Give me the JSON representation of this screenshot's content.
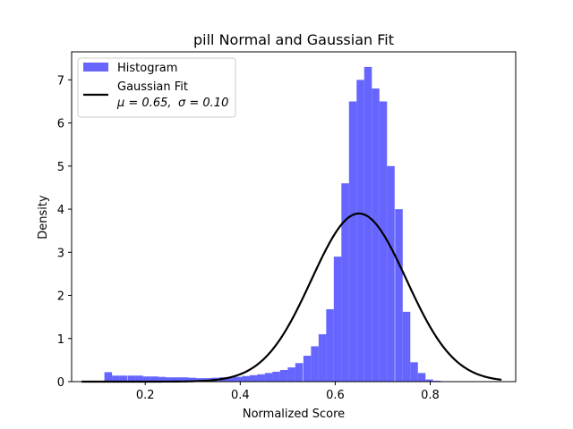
{
  "chart_data": {
    "type": "bar",
    "title": "pill Normal and Gaussian Fit",
    "xlabel": "Normalized Score",
    "ylabel": "Density",
    "xlim": [
      0.045,
      0.98
    ],
    "ylim": [
      0,
      7.65
    ],
    "xticks": [
      0.2,
      0.4,
      0.6,
      0.8
    ],
    "xtick_labels": [
      "0.2",
      "0.4",
      "0.6",
      "0.8"
    ],
    "yticks": [
      0,
      1,
      2,
      3,
      4,
      5,
      6,
      7
    ],
    "ytick_labels": [
      "0",
      "1",
      "2",
      "3",
      "4",
      "5",
      "6",
      "7"
    ],
    "histogram": {
      "name": "Histogram",
      "color": "#6666ff",
      "bin_width": 0.0161,
      "bins_start": [
        0.066,
        0.082,
        0.098,
        0.114,
        0.13,
        0.146,
        0.163,
        0.179,
        0.195,
        0.211,
        0.227,
        0.243,
        0.259,
        0.275,
        0.291,
        0.307,
        0.323,
        0.339,
        0.356,
        0.372,
        0.388,
        0.404,
        0.42,
        0.436,
        0.452,
        0.468,
        0.484,
        0.5,
        0.516,
        0.533,
        0.549,
        0.565,
        0.581,
        0.597,
        0.613,
        0.629,
        0.645,
        0.661,
        0.677,
        0.693,
        0.709,
        0.726,
        0.742,
        0.758,
        0.774,
        0.79,
        0.806,
        0.822,
        0.838,
        0.854,
        0.87,
        0.886,
        0.902,
        0.918,
        0.934
      ],
      "values": [
        0.01,
        0.01,
        0.01,
        0.22,
        0.14,
        0.14,
        0.14,
        0.14,
        0.12,
        0.12,
        0.11,
        0.1,
        0.1,
        0.1,
        0.09,
        0.08,
        0.08,
        0.09,
        0.1,
        0.1,
        0.11,
        0.13,
        0.15,
        0.17,
        0.2,
        0.23,
        0.27,
        0.33,
        0.43,
        0.6,
        0.82,
        1.1,
        1.68,
        2.9,
        4.6,
        6.5,
        7.0,
        7.3,
        6.8,
        6.5,
        5.0,
        4.0,
        1.62,
        0.45,
        0.2,
        0.05,
        0.02,
        0.01,
        0.0,
        0.0,
        0.0,
        0.0,
        0.0,
        0.0,
        0.0
      ]
    },
    "gaussian_fit": {
      "name": "Gaussian Fit",
      "mu": 0.65,
      "sigma": 0.1,
      "peak_density": 3.9,
      "x_range": [
        0.066,
        0.95
      ],
      "color": "#000000"
    },
    "legend": {
      "position": "top-left",
      "histogram_label": "Histogram",
      "fit_label_line1": "Gaussian Fit",
      "fit_label_mu": "μ = 0.65,",
      "fit_label_sigma": "σ = 0.10"
    }
  }
}
